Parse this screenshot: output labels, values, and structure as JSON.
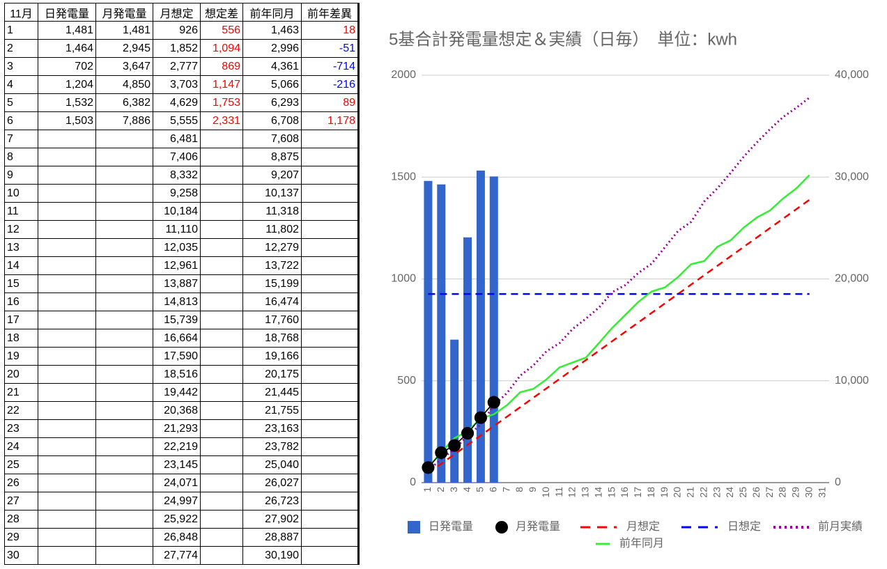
{
  "table": {
    "header": [
      "11月",
      "日発電量",
      "月発電量",
      "月想定",
      "想定差",
      "前年同月",
      "前年差異"
    ],
    "rows": [
      [
        "1",
        "1,481",
        "1,481",
        "926",
        "556",
        "1,463",
        "18"
      ],
      [
        "2",
        "1,464",
        "2,945",
        "1,852",
        "1,094",
        "2,996",
        "-51"
      ],
      [
        "3",
        "702",
        "3,647",
        "2,777",
        "869",
        "4,361",
        "-714"
      ],
      [
        "4",
        "1,204",
        "4,850",
        "3,703",
        "1,147",
        "5,066",
        "-216"
      ],
      [
        "5",
        "1,532",
        "6,382",
        "4,629",
        "1,753",
        "6,293",
        "89"
      ],
      [
        "6",
        "1,503",
        "7,886",
        "5,555",
        "2,331",
        "6,708",
        "1,178"
      ],
      [
        "7",
        null,
        null,
        "6,481",
        null,
        "7,608",
        null
      ],
      [
        "8",
        null,
        null,
        "7,406",
        null,
        "8,875",
        null
      ],
      [
        "9",
        null,
        null,
        "8,332",
        null,
        "9,207",
        null
      ],
      [
        "10",
        null,
        null,
        "9,258",
        null,
        "10,137",
        null
      ],
      [
        "11",
        null,
        null,
        "10,184",
        null,
        "11,318",
        null
      ],
      [
        "12",
        null,
        null,
        "11,110",
        null,
        "11,802",
        null
      ],
      [
        "13",
        null,
        null,
        "12,035",
        null,
        "12,279",
        null
      ],
      [
        "14",
        null,
        null,
        "12,961",
        null,
        "13,722",
        null
      ],
      [
        "15",
        null,
        null,
        "13,887",
        null,
        "15,199",
        null
      ],
      [
        "16",
        null,
        null,
        "14,813",
        null,
        "16,474",
        null
      ],
      [
        "17",
        null,
        null,
        "15,739",
        null,
        "17,760",
        null
      ],
      [
        "18",
        null,
        null,
        "16,664",
        null,
        "18,768",
        null
      ],
      [
        "19",
        null,
        null,
        "17,590",
        null,
        "19,166",
        null
      ],
      [
        "20",
        null,
        null,
        "18,516",
        null,
        "20,175",
        null
      ],
      [
        "21",
        null,
        null,
        "19,442",
        null,
        "21,445",
        null
      ],
      [
        "22",
        null,
        null,
        "20,368",
        null,
        "21,755",
        null
      ],
      [
        "23",
        null,
        null,
        "21,293",
        null,
        "23,163",
        null
      ],
      [
        "24",
        null,
        null,
        "22,219",
        null,
        "23,782",
        null
      ],
      [
        "25",
        null,
        null,
        "23,145",
        null,
        "25,040",
        null
      ],
      [
        "26",
        null,
        null,
        "24,071",
        null,
        "26,027",
        null
      ],
      [
        "27",
        null,
        null,
        "24,997",
        null,
        "26,723",
        null
      ],
      [
        "28",
        null,
        null,
        "25,922",
        null,
        "27,902",
        null
      ],
      [
        "29",
        null,
        null,
        "26,848",
        null,
        "28,887",
        null
      ],
      [
        "30",
        null,
        null,
        "27,774",
        null,
        "30,190",
        null
      ]
    ]
  },
  "chart_data": {
    "type": "combo",
    "title": "5基合計発電量想定＆実績（日毎）　単位：kwh",
    "categories": [
      1,
      2,
      3,
      4,
      5,
      6,
      7,
      8,
      9,
      10,
      11,
      12,
      13,
      14,
      15,
      16,
      17,
      18,
      19,
      20,
      21,
      22,
      23,
      24,
      25,
      26,
      27,
      28,
      29,
      30,
      31
    ],
    "ylim": [
      0,
      2000
    ],
    "yticks": [
      0,
      500,
      1000,
      1500,
      2000
    ],
    "y2lim": [
      0,
      40000
    ],
    "y2ticks": [
      0,
      {
        "value": 10000,
        "label": "10,000"
      },
      {
        "value": 20000,
        "label": "20,000"
      },
      {
        "value": 30000,
        "label": "30,000"
      },
      {
        "value": 40000,
        "label": "40,000"
      }
    ],
    "grid": true,
    "series": [
      {
        "name": "日発電量",
        "type": "bar",
        "color": "#3366cc",
        "values": [
          1481,
          1464,
          702,
          1204,
          1532,
          1503,
          null,
          null,
          null,
          null,
          null,
          null,
          null,
          null,
          null,
          null,
          null,
          null,
          null,
          null,
          null,
          null,
          null,
          null,
          null,
          null,
          null,
          null,
          null,
          null,
          null
        ]
      },
      {
        "name": "月発電量",
        "type": "scatter",
        "axis": "y2",
        "color": "#000000",
        "values": [
          1481,
          2945,
          3647,
          4850,
          6382,
          7886,
          null,
          null,
          null,
          null,
          null,
          null,
          null,
          null,
          null,
          null,
          null,
          null,
          null,
          null,
          null,
          null,
          null,
          null,
          null,
          null,
          null,
          null,
          null,
          null,
          null
        ]
      },
      {
        "name": "月想定",
        "type": "line",
        "style": "dashed",
        "axis": "y2",
        "color": "#ff0000",
        "values": [
          926,
          1852,
          2777,
          3703,
          4629,
          5555,
          6481,
          7406,
          8332,
          9258,
          10184,
          11110,
          12035,
          12961,
          13887,
          14813,
          15739,
          16664,
          17590,
          18516,
          19442,
          20368,
          21293,
          22219,
          23145,
          24071,
          24997,
          25922,
          26848,
          27774,
          null
        ]
      },
      {
        "name": "日想定",
        "type": "line",
        "style": "dashed",
        "color": "#0000ff",
        "values": [
          926,
          926,
          926,
          926,
          926,
          926,
          926,
          926,
          926,
          926,
          926,
          926,
          926,
          926,
          926,
          926,
          926,
          926,
          926,
          926,
          926,
          926,
          926,
          926,
          926,
          926,
          926,
          926,
          926,
          926,
          null
        ]
      },
      {
        "name": "前月実績",
        "type": "line",
        "style": "dotted",
        "axis": "y2",
        "color": "#990099",
        "values": [
          1200,
          2300,
          3300,
          4600,
          5700,
          7600,
          8800,
          10500,
          11500,
          12900,
          13700,
          15100,
          16100,
          17200,
          18700,
          19400,
          20600,
          21500,
          23100,
          24700,
          25600,
          27600,
          28900,
          30400,
          32000,
          33400,
          34700,
          35900,
          36800,
          37800,
          null
        ]
      },
      {
        "name": "前年同月",
        "type": "line",
        "style": "solid",
        "axis": "y2",
        "color": "#33ee33",
        "values": [
          1463,
          2996,
          4361,
          5066,
          6293,
          6708,
          7608,
          8875,
          9207,
          10137,
          11318,
          11802,
          12279,
          13722,
          15199,
          16474,
          17760,
          18768,
          19166,
          20175,
          21445,
          21755,
          23163,
          23782,
          25040,
          26027,
          26723,
          27902,
          28887,
          30190,
          null
        ]
      }
    ]
  }
}
